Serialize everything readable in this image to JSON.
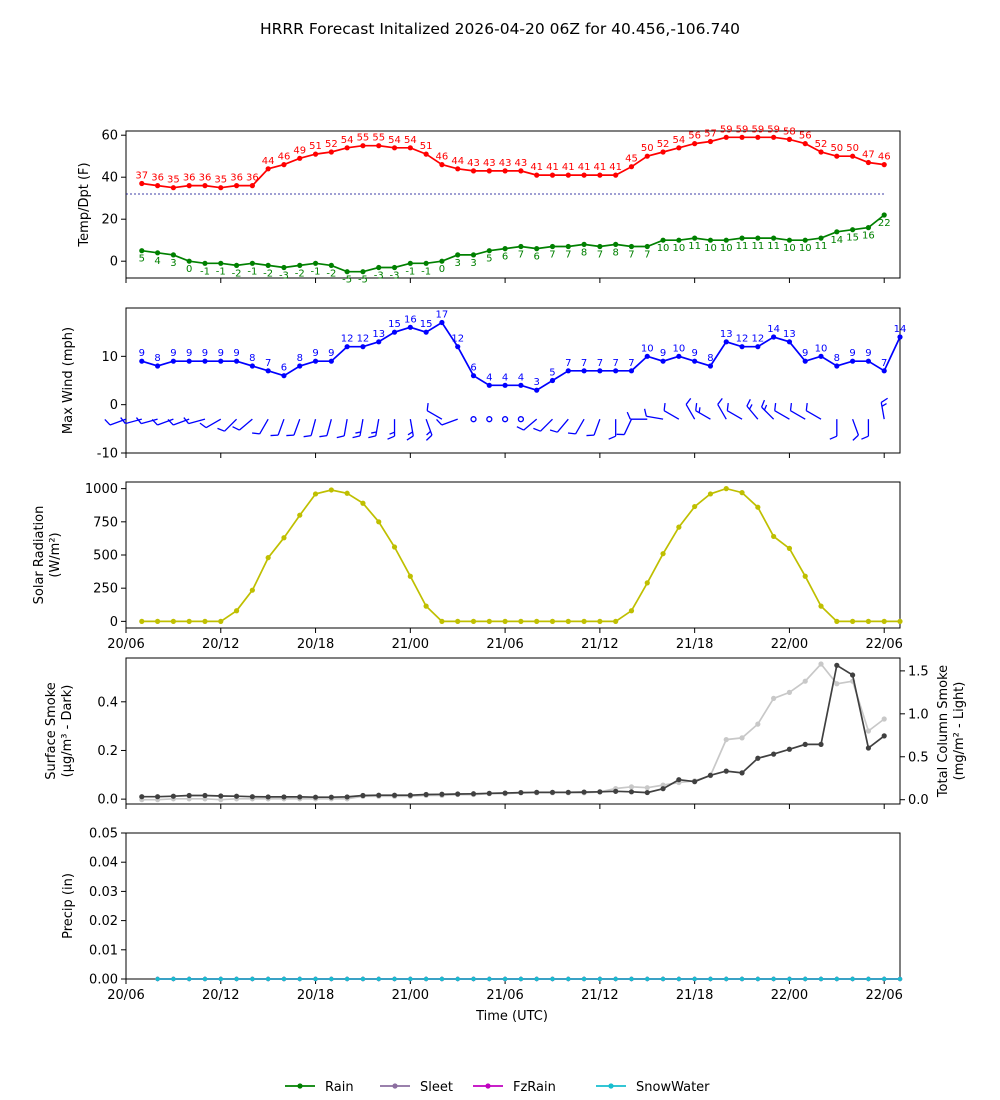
{
  "title": "HRRR Forecast Initalized 2026-04-20 06Z for 40.456,-106.740",
  "x_tick_labels": [
    "20/06",
    "20/12",
    "20/18",
    "21/00",
    "21/06",
    "21/12",
    "21/18",
    "22/00",
    "22/06"
  ],
  "xlabel": "Time (UTC)",
  "colors": {
    "temp": "#ff0000",
    "dewpoint": "#008000",
    "wind": "#0000ff",
    "solar": "#bfbf00",
    "smoke_dark": "#404040",
    "smoke_light": "#c8c8c8",
    "precip": "#17becf"
  },
  "chart_data": [
    {
      "id": "temp",
      "type": "line",
      "ylabel": "Temp/Dpt (F)",
      "ylim": [
        -8,
        62
      ],
      "yticks": [
        0,
        20,
        40,
        60
      ],
      "freezing_line": 32,
      "series": [
        {
          "name": "Temperature",
          "color": "#ff0000",
          "values": [
            37,
            36,
            35,
            36,
            36,
            35,
            36,
            36,
            44,
            46,
            49,
            51,
            52,
            54,
            55,
            55,
            54,
            54,
            51,
            46,
            44,
            43,
            43,
            43,
            43,
            41,
            41,
            41,
            41,
            41,
            41,
            45,
            50,
            52,
            54,
            56,
            57,
            59,
            59,
            59,
            59,
            58,
            56,
            52,
            50,
            50,
            47,
            46
          ]
        },
        {
          "name": "Dewpoint",
          "color": "#008000",
          "values": [
            5,
            4,
            3,
            0,
            -1,
            -1,
            -2,
            -1,
            -2,
            -3,
            -2,
            -1,
            -2,
            -5,
            -5,
            -3,
            -3,
            -1,
            -1,
            0,
            3,
            3,
            5,
            6,
            7,
            6,
            7,
            7,
            8,
            7,
            8,
            7,
            7,
            10,
            10,
            11,
            10,
            10,
            11,
            11,
            11,
            10,
            10,
            11,
            14,
            15,
            16,
            22
          ]
        }
      ]
    },
    {
      "id": "wind",
      "type": "line",
      "ylabel": "Max Wind (mph)",
      "ylim": [
        -10,
        20
      ],
      "yticks": [
        -10,
        0,
        10
      ],
      "series": [
        {
          "name": "Max Wind",
          "color": "#0000ff",
          "values": [
            9,
            8,
            9,
            9,
            9,
            9,
            9,
            8,
            7,
            6,
            8,
            9,
            9,
            12,
            12,
            13,
            15,
            16,
            15,
            17,
            12,
            6,
            4,
            4,
            4,
            3,
            5,
            7,
            7,
            7,
            7,
            7,
            10,
            9,
            10,
            9,
            8,
            13,
            12,
            12,
            14,
            13,
            9,
            10,
            8,
            9,
            9,
            7,
            14
          ]
        }
      ],
      "wind_barbs": "row of wind barbs plotted at y=-3 (direction symbols)"
    },
    {
      "id": "solar",
      "type": "line",
      "ylabel": "Solar Radiation (W/m²)",
      "ylim": [
        -50,
        1050
      ],
      "yticks": [
        0,
        250,
        500,
        750,
        1000
      ],
      "series": [
        {
          "name": "Solar Radiation",
          "color": "#bfbf00",
          "values": [
            0,
            0,
            0,
            0,
            0,
            0,
            80,
            235,
            480,
            630,
            800,
            960,
            990,
            965,
            890,
            750,
            560,
            340,
            115,
            0,
            0,
            0,
            0,
            0,
            0,
            0,
            0,
            0,
            0,
            0,
            0,
            80,
            290,
            510,
            710,
            865,
            960,
            1000,
            970,
            860,
            640,
            550,
            340,
            115,
            0,
            0,
            0,
            0,
            0
          ]
        }
      ]
    },
    {
      "id": "smoke",
      "type": "line",
      "ylabel_left": "Surface Smoke (μg/m³ - Dark)",
      "ylabel_right": "Total Column Smoke (mg/m² - Light)",
      "ylim_left": [
        -0.02,
        0.58
      ],
      "yticks_left": [
        0.0,
        0.2,
        0.4
      ],
      "ylim_right": [
        -0.05,
        1.65
      ],
      "yticks_right": [
        0.0,
        0.5,
        1.0,
        1.5
      ],
      "series": [
        {
          "name": "Surface Smoke",
          "axis": "left",
          "color": "#404040",
          "values": [
            0.01,
            0.01,
            0.012,
            0.015,
            0.015,
            0.013,
            0.012,
            0.01,
            0.009,
            0.009,
            0.009,
            0.008,
            0.008,
            0.009,
            0.015,
            0.016,
            0.016,
            0.016,
            0.019,
            0.02,
            0.021,
            0.022,
            0.024,
            0.025,
            0.027,
            0.028,
            0.028,
            0.028,
            0.029,
            0.03,
            0.032,
            0.03,
            0.027,
            0.043,
            0.08,
            0.072,
            0.098,
            0.115,
            0.108,
            0.168,
            0.185,
            0.205,
            0.225,
            0.225,
            0.55,
            0.51,
            0.21,
            0.26
          ]
        },
        {
          "name": "Total Column Smoke",
          "axis": "right",
          "color": "#c8c8c8",
          "values": [
            0.0,
            0.0,
            0.01,
            0.01,
            0.01,
            0.0,
            0.01,
            0.01,
            0.01,
            0.01,
            0.01,
            0.01,
            0.01,
            0.01,
            0.04,
            0.04,
            0.04,
            0.04,
            0.05,
            0.05,
            0.06,
            0.06,
            0.07,
            0.07,
            0.08,
            0.08,
            0.08,
            0.08,
            0.08,
            0.09,
            0.13,
            0.15,
            0.14,
            0.17,
            0.2,
            0.22,
            0.28,
            0.7,
            0.72,
            0.88,
            1.18,
            1.25,
            1.38,
            1.58,
            1.35,
            1.38,
            0.8,
            0.94
          ]
        }
      ]
    },
    {
      "id": "precip",
      "type": "line",
      "ylabel": "Precip (in)",
      "ylim": [
        0,
        0.05
      ],
      "yticks": [
        0.0,
        0.01,
        0.02,
        0.03,
        0.04,
        0.05
      ],
      "series": [
        {
          "name": "Rain",
          "color": "#008000",
          "values": [
            0,
            0,
            0,
            0,
            0,
            0,
            0,
            0,
            0,
            0,
            0,
            0,
            0,
            0,
            0,
            0,
            0,
            0,
            0,
            0,
            0,
            0,
            0,
            0,
            0,
            0,
            0,
            0,
            0,
            0,
            0,
            0,
            0,
            0,
            0,
            0,
            0,
            0,
            0,
            0,
            0,
            0,
            0,
            0,
            0,
            0,
            0,
            0
          ]
        },
        {
          "name": "Sleet",
          "color": "#8c6ea0",
          "values": [
            0,
            0,
            0,
            0,
            0,
            0,
            0,
            0,
            0,
            0,
            0,
            0,
            0,
            0,
            0,
            0,
            0,
            0,
            0,
            0,
            0,
            0,
            0,
            0,
            0,
            0,
            0,
            0,
            0,
            0,
            0,
            0,
            0,
            0,
            0,
            0,
            0,
            0,
            0,
            0,
            0,
            0,
            0,
            0,
            0,
            0,
            0,
            0
          ]
        },
        {
          "name": "FzRain",
          "color": "#c000c0",
          "values": [
            0,
            0,
            0,
            0,
            0,
            0,
            0,
            0,
            0,
            0,
            0,
            0,
            0,
            0,
            0,
            0,
            0,
            0,
            0,
            0,
            0,
            0,
            0,
            0,
            0,
            0,
            0,
            0,
            0,
            0,
            0,
            0,
            0,
            0,
            0,
            0,
            0,
            0,
            0,
            0,
            0,
            0,
            0,
            0,
            0,
            0,
            0,
            0
          ]
        },
        {
          "name": "SnowWater",
          "color": "#17becf",
          "values": [
            0,
            0,
            0,
            0,
            0,
            0,
            0,
            0,
            0,
            0,
            0,
            0,
            0,
            0,
            0,
            0,
            0,
            0,
            0,
            0,
            0,
            0,
            0,
            0,
            0,
            0,
            0,
            0,
            0,
            0,
            0,
            0,
            0,
            0,
            0,
            0,
            0,
            0,
            0,
            0,
            0,
            0,
            0,
            0,
            0,
            0,
            0,
            0
          ]
        }
      ]
    }
  ],
  "legend": [
    {
      "label": "Rain",
      "color": "#008000"
    },
    {
      "label": "Sleet",
      "color": "#8c6ea0"
    },
    {
      "label": "FzRain",
      "color": "#c000c0"
    },
    {
      "label": "SnowWater",
      "color": "#17becf"
    }
  ]
}
